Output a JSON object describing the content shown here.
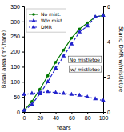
{
  "chart_data": {
    "type": "line",
    "x_label": "Years",
    "y_label": "Basal area (m²/hare)",
    "y2_label": "Stand DMR w/mistletoe",
    "x": [
      0,
      10,
      20,
      30,
      40,
      50,
      60,
      70,
      80,
      90,
      100
    ],
    "series": [
      {
        "name": "No mist.",
        "color": "#007700",
        "marker": "circle",
        "line_style": "solid",
        "values": [
          5,
          35,
          75,
          120,
          165,
          205,
          245,
          275,
          295,
          315,
          320
        ]
      },
      {
        "name": "W/o mist.",
        "color": "#2222cc",
        "marker": "triangle",
        "line_style": "dashed",
        "values": [
          5,
          25,
          60,
          100,
          145,
          185,
          225,
          265,
          285,
          315,
          320
        ]
      },
      {
        "name": "DMR",
        "color": "#2222cc",
        "marker": "triangle",
        "line_style": "dotted",
        "axis": "y2",
        "values": [
          1.0,
          1.05,
          1.1,
          1.15,
          1.1,
          1.05,
          1.0,
          0.95,
          0.85,
          0.75,
          0.65
        ]
      }
    ],
    "xlim": [
      0,
      100
    ],
    "xticks": [
      0,
      20,
      40,
      60,
      80,
      100
    ],
    "ylim": [
      0,
      350
    ],
    "yticks": [
      0,
      50,
      100,
      150,
      200,
      250,
      300,
      350
    ],
    "y2lim": [
      0,
      6
    ],
    "y2ticks": [
      0,
      2,
      4,
      6
    ],
    "annotations": [
      "No mistletoe",
      "w/ mistletoe"
    ],
    "legend": "upper left"
  }
}
